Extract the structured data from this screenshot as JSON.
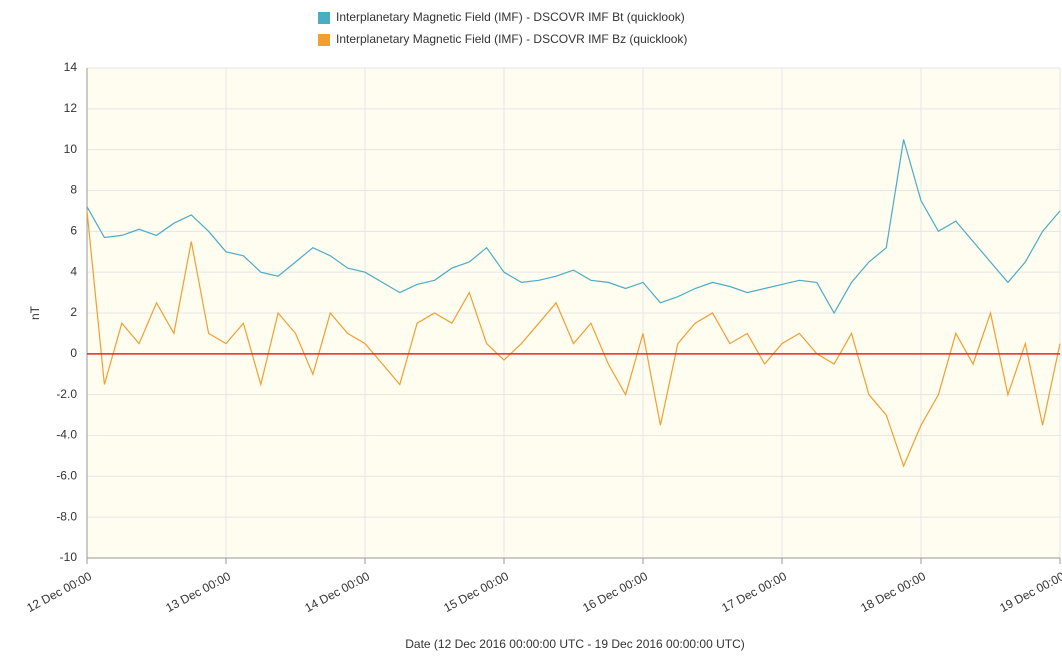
{
  "chart_data": {
    "type": "line",
    "x_label": "Date (12 Dec 2016 00:00:00 UTC - 19 Dec 2016 00:00:00 UTC)",
    "y_label": "nT",
    "x": [
      "12 Dec 00:00",
      "12 Dec 03:00",
      "12 Dec 06:00",
      "12 Dec 09:00",
      "12 Dec 12:00",
      "12 Dec 15:00",
      "12 Dec 18:00",
      "12 Dec 21:00",
      "13 Dec 00:00",
      "13 Dec 03:00",
      "13 Dec 06:00",
      "13 Dec 09:00",
      "13 Dec 12:00",
      "13 Dec 15:00",
      "13 Dec 18:00",
      "13 Dec 21:00",
      "14 Dec 00:00",
      "14 Dec 03:00",
      "14 Dec 06:00",
      "14 Dec 09:00",
      "14 Dec 12:00",
      "14 Dec 15:00",
      "14 Dec 18:00",
      "14 Dec 21:00",
      "15 Dec 00:00",
      "15 Dec 03:00",
      "15 Dec 06:00",
      "15 Dec 09:00",
      "15 Dec 12:00",
      "15 Dec 15:00",
      "15 Dec 18:00",
      "15 Dec 21:00",
      "16 Dec 00:00",
      "16 Dec 03:00",
      "16 Dec 06:00",
      "16 Dec 09:00",
      "16 Dec 12:00",
      "16 Dec 15:00",
      "16 Dec 18:00",
      "16 Dec 21:00",
      "17 Dec 00:00",
      "17 Dec 03:00",
      "17 Dec 06:00",
      "17 Dec 09:00",
      "17 Dec 12:00",
      "17 Dec 15:00",
      "17 Dec 18:00",
      "17 Dec 21:00",
      "18 Dec 00:00",
      "18 Dec 03:00",
      "18 Dec 06:00",
      "18 Dec 09:00",
      "18 Dec 12:00",
      "18 Dec 15:00",
      "18 Dec 18:00",
      "18 Dec 21:00",
      "19 Dec 00:00"
    ],
    "series": [
      {
        "name": "Interplanetary Magnetic Field (IMF) - DSCOVR IMF Bt (quicklook)",
        "color": "#4bacc6",
        "values": [
          7.2,
          5.7,
          5.8,
          6.1,
          5.8,
          6.4,
          6.8,
          6.0,
          5.0,
          4.8,
          4.0,
          3.8,
          4.5,
          5.2,
          4.8,
          4.2,
          4.0,
          3.5,
          3.0,
          3.4,
          3.6,
          4.2,
          4.5,
          5.2,
          4.0,
          3.5,
          3.6,
          3.8,
          4.1,
          3.6,
          3.5,
          3.2,
          3.5,
          2.5,
          2.8,
          3.2,
          3.5,
          3.3,
          3.0,
          3.2,
          3.4,
          3.6,
          3.5,
          2.0,
          3.5,
          4.5,
          5.2,
          10.5,
          7.5,
          6.0,
          6.5,
          5.5,
          4.5,
          3.5,
          4.5,
          6.0,
          7.0
        ]
      },
      {
        "name": "Interplanetary Magnetic Field (IMF) - DSCOVR IMF Bz (quicklook)",
        "color": "#f0a030",
        "values": [
          7.0,
          -1.5,
          1.5,
          0.5,
          2.5,
          1.0,
          5.5,
          1.0,
          0.5,
          1.5,
          -1.5,
          2.0,
          1.0,
          -1.0,
          2.0,
          1.0,
          0.5,
          -0.5,
          -1.5,
          1.5,
          2.0,
          1.5,
          3.0,
          0.5,
          -0.3,
          0.5,
          1.5,
          2.5,
          0.5,
          1.5,
          -0.5,
          -2.0,
          1.0,
          -3.5,
          0.5,
          1.5,
          2.0,
          0.5,
          1.0,
          -0.5,
          0.5,
          1.0,
          0.0,
          -0.5,
          1.0,
          -2.0,
          -3.0,
          -5.5,
          -3.5,
          -2.0,
          1.0,
          -0.5,
          2.0,
          -2.0,
          0.5,
          -3.5,
          0.5
        ]
      }
    ],
    "xlim": [
      "12 Dec 00:00",
      "19 Dec 00:00"
    ],
    "xticks": [
      "12 Dec 00:00",
      "13 Dec 00:00",
      "14 Dec 00:00",
      "15 Dec 00:00",
      "16 Dec 00:00",
      "17 Dec 00:00",
      "18 Dec 00:00",
      "19 Dec 00:00"
    ],
    "ylim": [
      -10,
      14
    ],
    "yticks": [
      14,
      12,
      10,
      8,
      6,
      4,
      2,
      0,
      {
        "value": -2,
        "label": "-2.0"
      },
      {
        "value": -4,
        "label": "-4.0"
      },
      {
        "value": -6,
        "label": "-6.0"
      },
      {
        "value": -8,
        "label": "-8.0"
      },
      -10
    ],
    "hlines": [
      {
        "value": 0,
        "color": "#ee2222"
      }
    ],
    "grid": true,
    "legend": "top"
  }
}
